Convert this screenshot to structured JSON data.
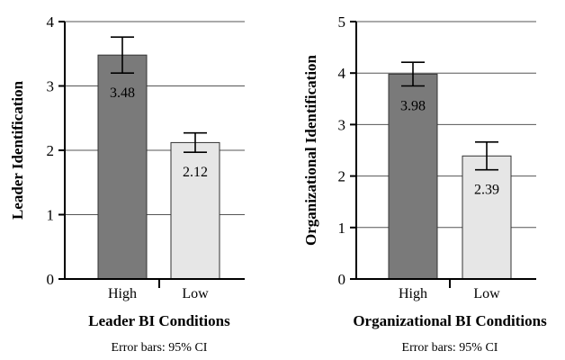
{
  "chart_data": [
    {
      "type": "bar",
      "categories": [
        "High",
        "Low"
      ],
      "values": [
        3.48,
        2.12
      ],
      "value_labels": [
        "3.48",
        "2.12"
      ],
      "error_bars": [
        [
          3.2,
          3.76
        ],
        [
          1.97,
          2.27
        ]
      ],
      "ylabel": "Leader Identification",
      "xlabel": "Leader BI Conditions",
      "note": "Error bars: 95% CI",
      "ylim": [
        0,
        4
      ],
      "yticks": [
        "0",
        "1",
        "2",
        "3",
        "4"
      ],
      "grid": true,
      "colors": [
        "#7a7a7a",
        "#e6e6e6"
      ]
    },
    {
      "type": "bar",
      "categories": [
        "High",
        "Low"
      ],
      "values": [
        3.98,
        2.39
      ],
      "value_labels": [
        "3.98",
        "2.39"
      ],
      "error_bars": [
        [
          3.75,
          4.21
        ],
        [
          2.12,
          2.66
        ]
      ],
      "ylabel": "Organizational Identification",
      "xlabel": "Organizational BI Conditions",
      "note": "Error bars: 95% CI",
      "ylim": [
        0,
        5
      ],
      "yticks": [
        "0",
        "1",
        "2",
        "3",
        "4",
        "5"
      ],
      "grid": true,
      "colors": [
        "#7a7a7a",
        "#e6e6e6"
      ]
    }
  ]
}
